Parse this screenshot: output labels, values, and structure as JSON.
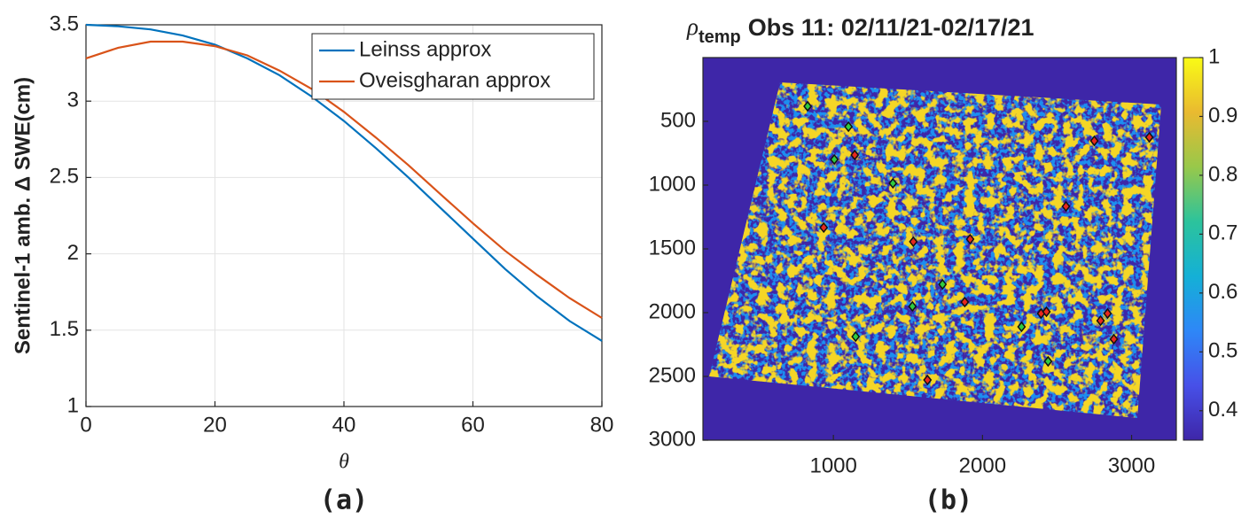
{
  "chart_data": [
    {
      "type": "line",
      "caption": "(a)",
      "xlabel": "θ",
      "ylabel": "Sentinel-1 amb. Δ SWE(cm)",
      "x": [
        0,
        5,
        10,
        15,
        20,
        25,
        30,
        35,
        40,
        45,
        50,
        55,
        60,
        65,
        70,
        75,
        80
      ],
      "series": [
        {
          "name": "Leinss approx",
          "color": "#0072bd",
          "values": [
            3.5,
            3.49,
            3.47,
            3.43,
            3.37,
            3.28,
            3.17,
            3.03,
            2.87,
            2.69,
            2.5,
            2.3,
            2.1,
            1.9,
            1.72,
            1.56,
            1.43
          ]
        },
        {
          "name": "Oveisgharan approx",
          "color": "#d95319",
          "values": [
            3.28,
            3.35,
            3.39,
            3.39,
            3.36,
            3.3,
            3.2,
            3.08,
            2.93,
            2.76,
            2.58,
            2.39,
            2.2,
            2.02,
            1.86,
            1.71,
            1.58
          ]
        }
      ],
      "xlim": [
        0,
        80
      ],
      "xticks": [
        0,
        20,
        40,
        60,
        80
      ],
      "ylim": [
        1,
        3.5
      ],
      "yticks": [
        1,
        1.5,
        2,
        2.5,
        3,
        3.5
      ],
      "grid": true,
      "legend": "upper right"
    },
    {
      "type": "scatter",
      "caption": "(b)",
      "title_symbol": "ρ",
      "title_subscript": "temp",
      "title": "Obs 11: 02/11/21-02/17/21",
      "points": [
        {
          "color": "#2ecc40",
          "x": [
            827,
            1101,
            1006,
            1399,
            1732,
            1530,
            1149,
            2262,
            2440
          ],
          "y": [
            382,
            542,
            799,
            986,
            1778,
            1951,
            2188,
            2111,
            2382
          ]
        },
        {
          "color": "#e8281e",
          "x": [
            1143,
            935,
            1536,
            1917,
            1881,
            1631,
            2393,
            2429,
            2750,
            3119,
            2560,
            2792,
            2839,
            2881
          ],
          "y": [
            764,
            1333,
            1444,
            1424,
            1917,
            2528,
            2007,
            1993,
            653,
            625,
            1167,
            2063,
            2007,
            2208
          ]
        }
      ],
      "xlim": [
        125,
        3300
      ],
      "xticks": [
        1000,
        2000,
        3000
      ],
      "ylim": [
        0,
        3000
      ],
      "yticks": [
        500,
        1000,
        1500,
        2000,
        2500,
        3000
      ],
      "y_reversed": true,
      "colorbar": {
        "lim": [
          0.35,
          1
        ],
        "ticks": [
          0.4,
          0.5,
          0.6,
          0.7,
          0.8,
          0.9,
          1
        ],
        "colors": [
          "#3e26a8",
          "#4750e8",
          "#2e87f7",
          "#14b0d6",
          "#2cc39c",
          "#98c84a",
          "#e9ba30",
          "#f9fb15"
        ]
      },
      "background_color": "#3e26a8",
      "texture_colors": [
        "#1f8ef0",
        "#f5d625"
      ]
    }
  ]
}
